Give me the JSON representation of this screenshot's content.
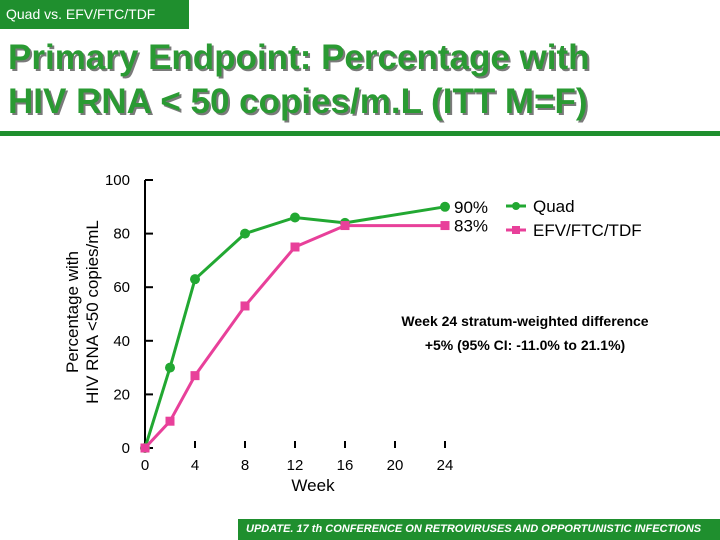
{
  "header": {
    "tag": "Quad vs. EFV/FTC/TDF",
    "title_line1": "Primary Endpoint: Percentage with",
    "title_line2": "HIV RNA < 50 copies/m.L (ITT M=F)"
  },
  "colors": {
    "brand_green": "#1f8f2e",
    "title_green": "#2a9a33",
    "quad": "#22a832",
    "efv": "#e8409a"
  },
  "chart_data": {
    "type": "line",
    "ylabel_line1": "Percentage with",
    "ylabel_line2": "HIV RNA <50 copies/mL",
    "xlabel": "Week",
    "ylim": [
      0,
      100
    ],
    "xlim": [
      0,
      24
    ],
    "yticks": [
      "0",
      "20",
      "40",
      "60",
      "80",
      "100"
    ],
    "xticks": [
      "0",
      "4",
      "8",
      "12",
      "16",
      "20",
      "24"
    ],
    "series": [
      {
        "name": "Quad",
        "color": "#22a832",
        "marker": "circle",
        "x": [
          0,
          2,
          4,
          8,
          12,
          16,
          24
        ],
        "y": [
          0,
          30,
          63,
          80,
          86,
          84,
          90
        ],
        "end_label": "90%"
      },
      {
        "name": "EFV/FTC/TDF",
        "color": "#e8409a",
        "marker": "square",
        "x": [
          0,
          2,
          4,
          8,
          12,
          16,
          24
        ],
        "y": [
          0,
          10,
          27,
          53,
          75,
          83,
          83
        ],
        "end_label": "83%"
      }
    ],
    "legend": "top-right",
    "annotation_line1": "Week 24 stratum-weighted difference",
    "annotation_line2": "+5% (95% CI: -11.0% to 21.1%)"
  },
  "footer": {
    "text": "UPDATE. 17 th CONFERENCE ON RETROVIRUSES AND OPPORTUNISTIC INFECTIONS"
  }
}
